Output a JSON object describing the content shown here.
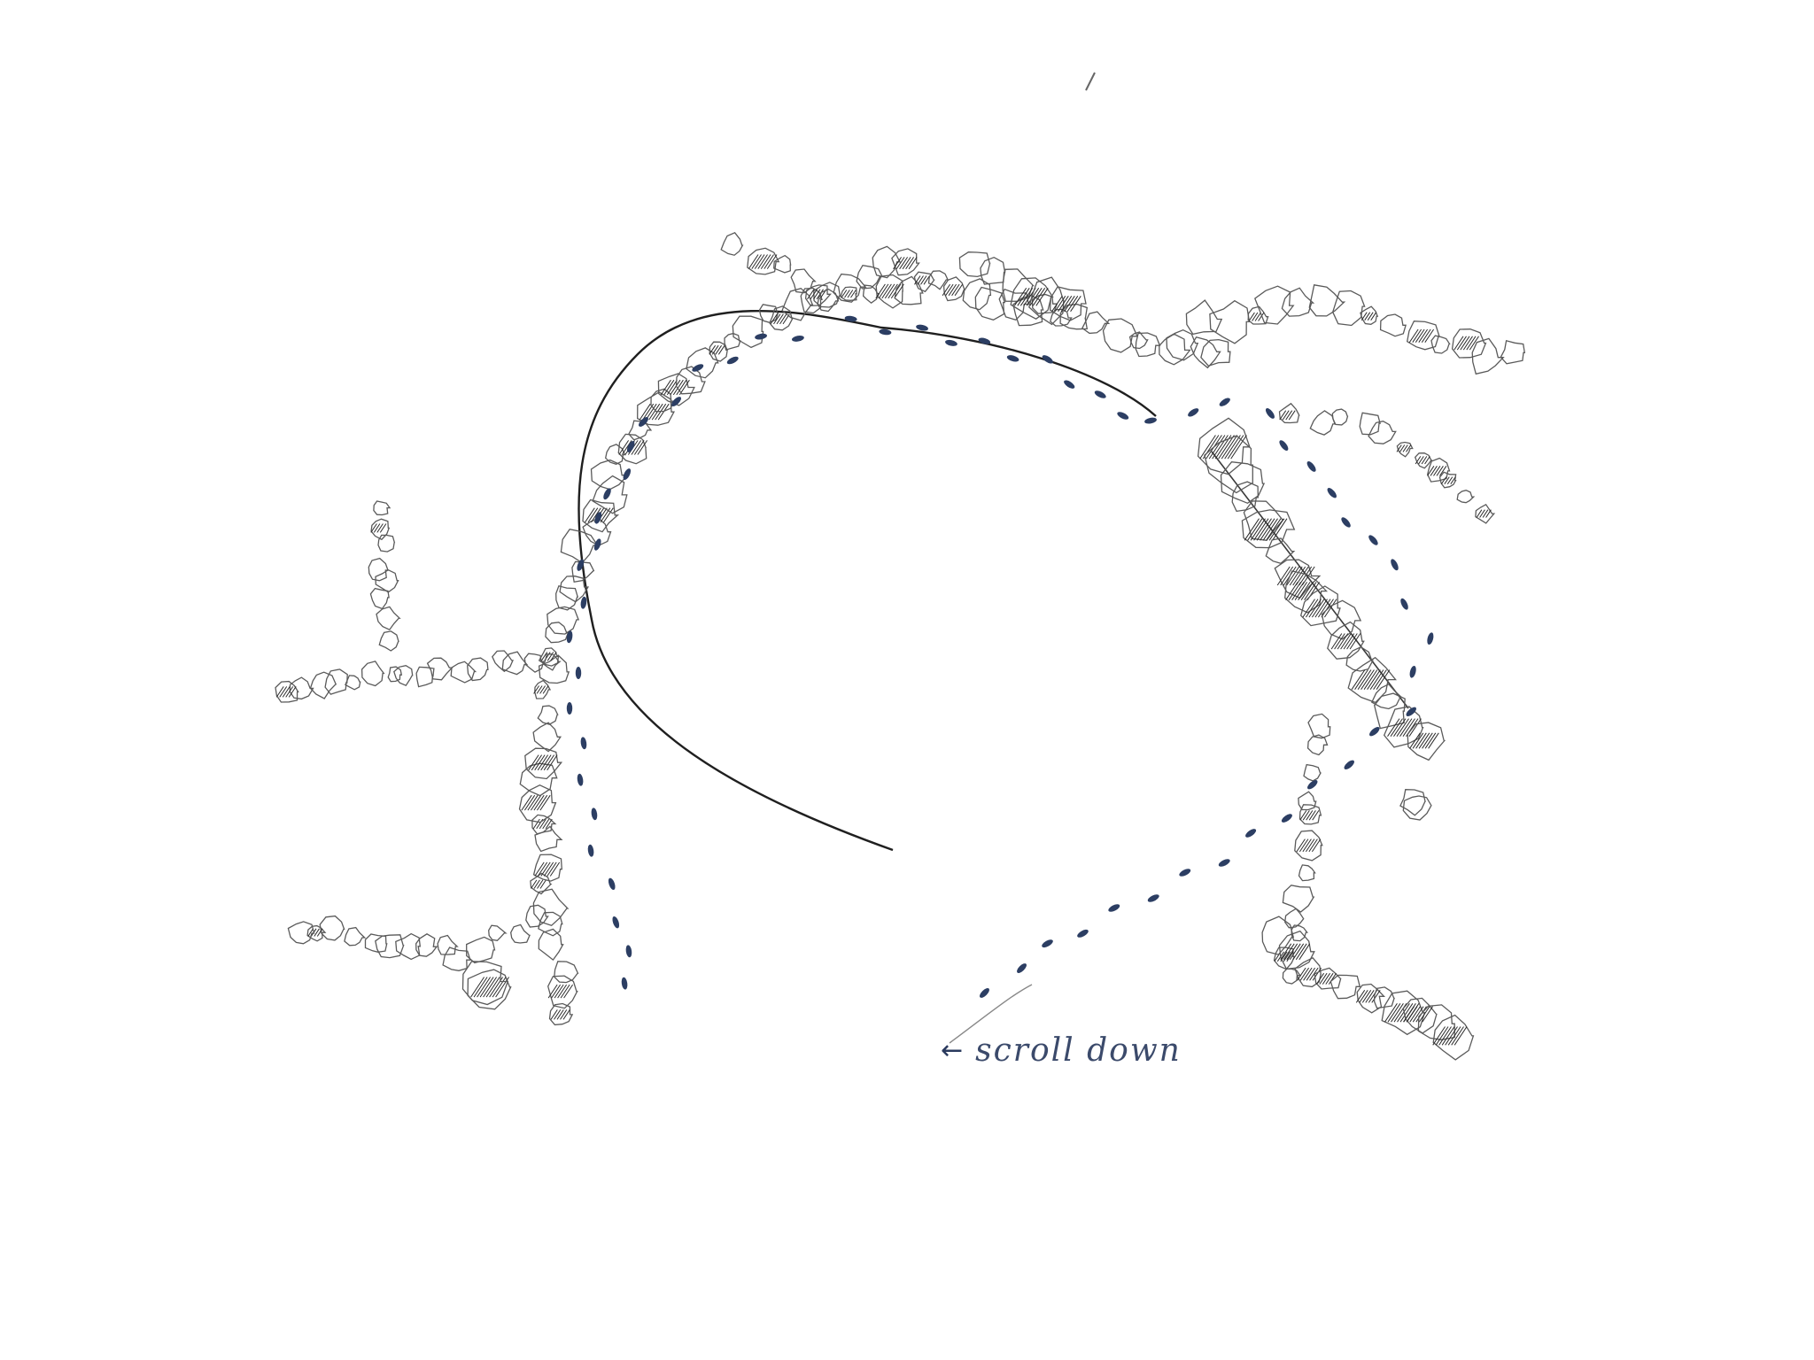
{
  "sketch": {
    "scroll_hint": {
      "label": "scroll down",
      "arrow_icon": "arrow-left-icon"
    }
  },
  "colors": {
    "background": "#ffffff",
    "pencil": "#5a5a5a",
    "pencil_dark": "#2b2b2b",
    "footprints": "#2c3e63"
  }
}
